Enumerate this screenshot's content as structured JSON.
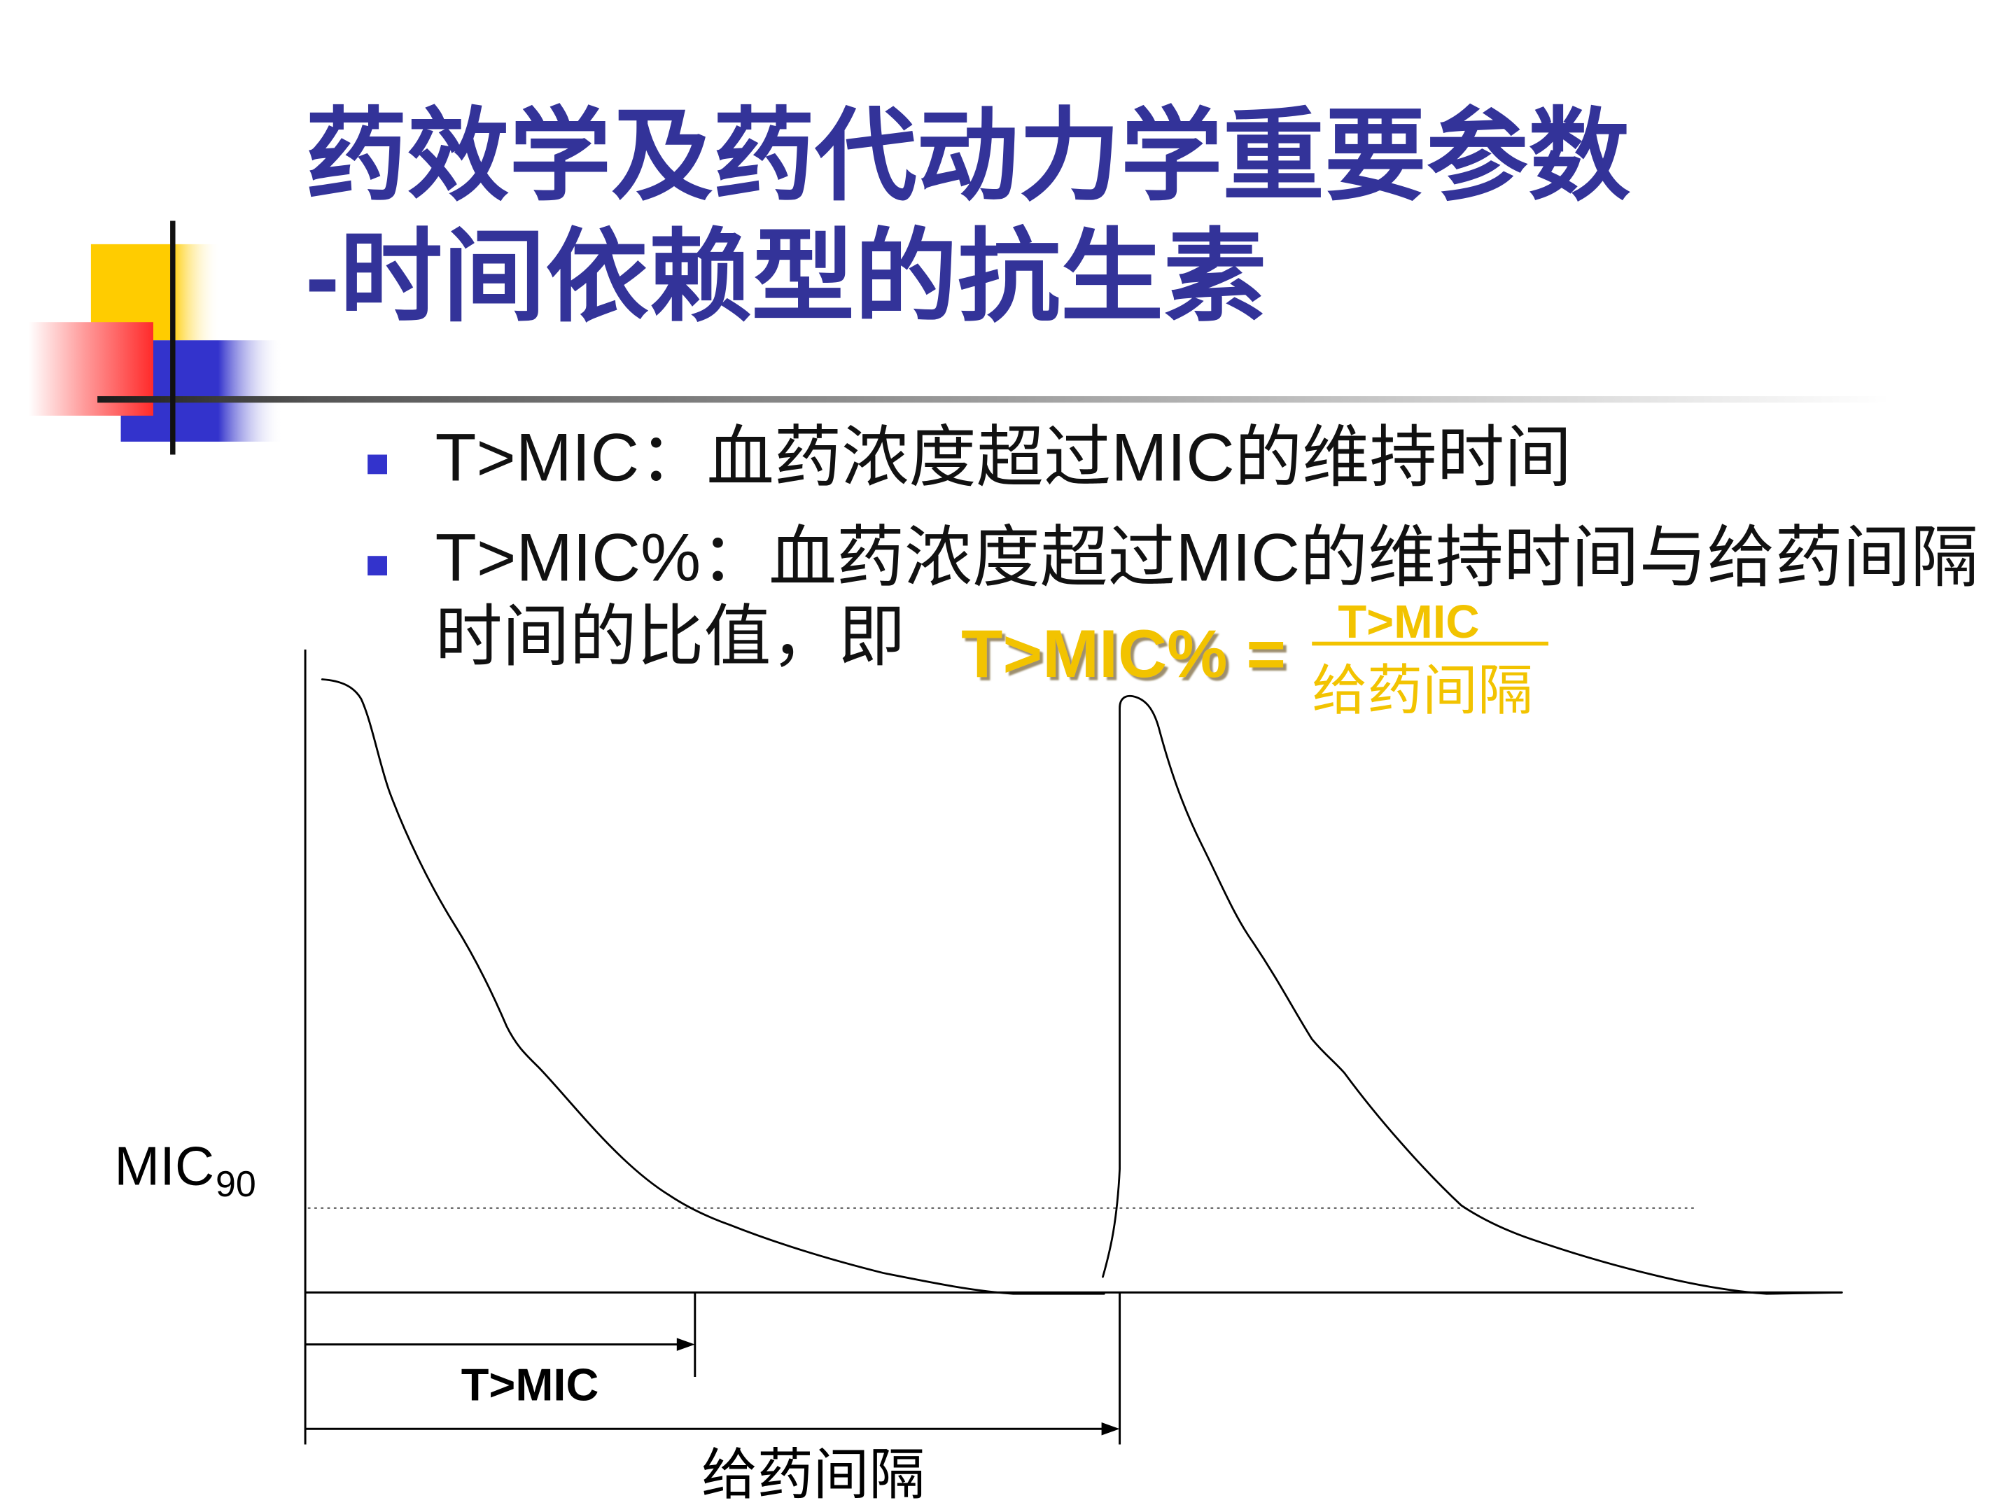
{
  "title": {
    "line1": "药效学及药代动力学重要参数",
    "line2": "-时间依赖型的抗生素"
  },
  "bullets": [
    {
      "text": "T>MIC：血药浓度超过MIC的维持时间"
    },
    {
      "line1": "T>MIC%：血药浓度超过MIC的维持时间与给药间隔",
      "line2": "时间的比值，即"
    }
  ],
  "formula": {
    "lhs": "T>MIC% =",
    "numerator": "T>MIC",
    "denominator": "给药间隔"
  },
  "diagram": {
    "mic_label": "MIC",
    "mic_subscript": "90",
    "t_mic_label": "T>MIC",
    "interval_label": "给药间隔"
  },
  "colors": {
    "title": "#333399",
    "bullet_marker": "#3333cc",
    "formula": "#f2c300",
    "accent_yellow": "#ffcc00",
    "accent_red": "#ff2a2a",
    "accent_blue": "#3333cc"
  }
}
